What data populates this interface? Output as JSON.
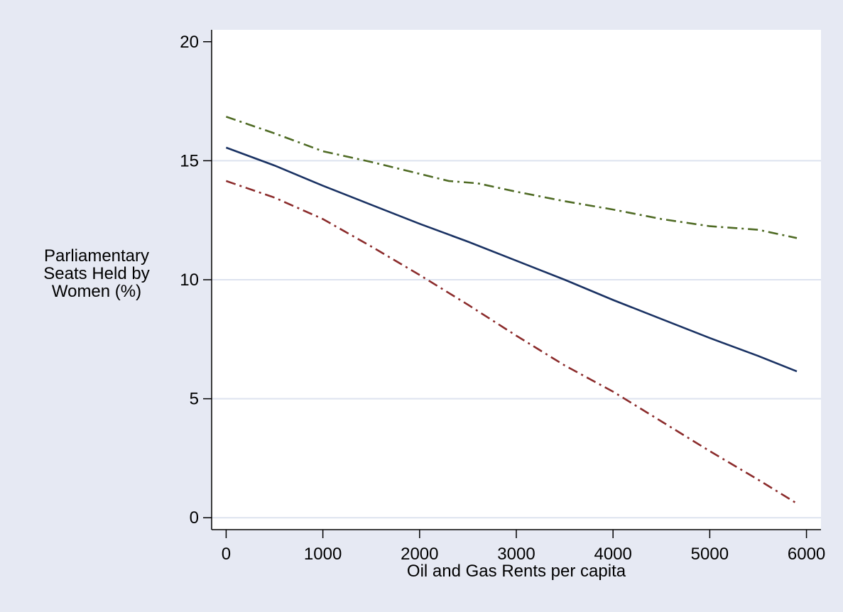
{
  "chart_data": {
    "type": "line",
    "title": "",
    "xlabel": "Oil and Gas Rents per capita",
    "ylabel_lines": [
      "Parliamentary",
      "Seats Held by",
      "Women (%)"
    ],
    "xlim": [
      -150,
      6150
    ],
    "ylim": [
      -0.5,
      20.5
    ],
    "xticks": [
      0,
      1000,
      2000,
      3000,
      4000,
      5000,
      6000
    ],
    "yticks": [
      0,
      5,
      10,
      15,
      20
    ],
    "grid": "horizontal",
    "legend": "none",
    "colors": {
      "background": "#e6e9f3",
      "plot_area": "#ffffff",
      "grid": "#dde3ef",
      "estimate": "#1a3263",
      "upper_bound": "#4f6b24",
      "lower_bound": "#8b2b2b"
    },
    "series": [
      {
        "id": "estimate",
        "style": "solid",
        "x": [
          0,
          500,
          1000,
          1500,
          2000,
          2500,
          3000,
          3500,
          4000,
          4500,
          5000,
          5500,
          5900
        ],
        "y": [
          15.55,
          14.8,
          13.95,
          13.15,
          12.35,
          11.6,
          10.8,
          10.0,
          9.15,
          8.35,
          7.55,
          6.8,
          6.15
        ]
      },
      {
        "id": "upper-bound",
        "style": "dash-dot",
        "x": [
          0,
          500,
          1000,
          1500,
          2000,
          2300,
          2600,
          3000,
          3500,
          4000,
          4500,
          5000,
          5500,
          5900
        ],
        "y": [
          16.85,
          16.15,
          15.4,
          14.95,
          14.45,
          14.15,
          14.05,
          13.7,
          13.3,
          12.95,
          12.55,
          12.25,
          12.1,
          11.75
        ]
      },
      {
        "id": "lower-bound",
        "style": "dash-dot",
        "x": [
          0,
          500,
          1000,
          1500,
          2000,
          2500,
          3000,
          3500,
          4000,
          4500,
          5000,
          5500,
          5900
        ],
        "y": [
          14.15,
          13.45,
          12.55,
          11.4,
          10.2,
          8.95,
          7.65,
          6.4,
          5.3,
          4.05,
          2.8,
          1.6,
          0.6
        ]
      }
    ]
  }
}
